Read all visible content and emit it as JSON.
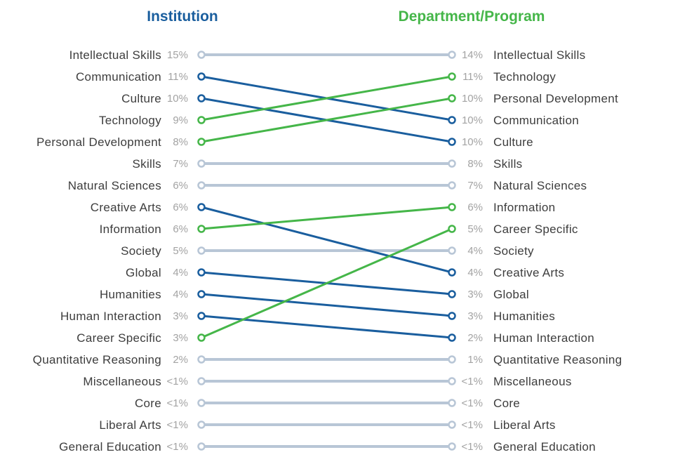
{
  "headers": {
    "left": "Institution",
    "right": "Department/Program"
  },
  "colors": {
    "institution": "#1a5e9e",
    "department": "#45b649",
    "neutral": "#b8c6d6",
    "label_text": "#3d3d3d",
    "percent_text": "#a3a3a3"
  },
  "chart_data": {
    "type": "slope",
    "left_column": "Institution",
    "right_column": "Department/Program",
    "left": [
      {
        "label": "Intellectual Skills",
        "value_text": "15%"
      },
      {
        "label": "Communication",
        "value_text": "11%"
      },
      {
        "label": "Culture",
        "value_text": "10%"
      },
      {
        "label": "Technology",
        "value_text": "9%"
      },
      {
        "label": "Personal Development",
        "value_text": "8%"
      },
      {
        "label": "Skills",
        "value_text": "7%"
      },
      {
        "label": "Natural Sciences",
        "value_text": "6%"
      },
      {
        "label": "Creative Arts",
        "value_text": "6%"
      },
      {
        "label": "Information",
        "value_text": "6%"
      },
      {
        "label": "Society",
        "value_text": "5%"
      },
      {
        "label": "Global",
        "value_text": "4%"
      },
      {
        "label": "Humanities",
        "value_text": "4%"
      },
      {
        "label": "Human Interaction",
        "value_text": "3%"
      },
      {
        "label": "Career Specific",
        "value_text": "3%"
      },
      {
        "label": "Quantitative Reasoning",
        "value_text": "2%"
      },
      {
        "label": "Miscellaneous",
        "value_text": "<1%"
      },
      {
        "label": "Core",
        "value_text": "<1%"
      },
      {
        "label": "Liberal Arts",
        "value_text": "<1%"
      },
      {
        "label": "General Education",
        "value_text": "<1%"
      }
    ],
    "right": [
      {
        "label": "Intellectual Skills",
        "value_text": "14%"
      },
      {
        "label": "Technology",
        "value_text": "11%"
      },
      {
        "label": "Personal Development",
        "value_text": "10%"
      },
      {
        "label": "Communication",
        "value_text": "10%"
      },
      {
        "label": "Culture",
        "value_text": "10%"
      },
      {
        "label": "Skills",
        "value_text": "8%"
      },
      {
        "label": "Natural Sciences",
        "value_text": "7%"
      },
      {
        "label": "Information",
        "value_text": "6%"
      },
      {
        "label": "Career Specific",
        "value_text": "5%"
      },
      {
        "label": "Society",
        "value_text": "4%"
      },
      {
        "label": "Creative Arts",
        "value_text": "4%"
      },
      {
        "label": "Global",
        "value_text": "3%"
      },
      {
        "label": "Humanities",
        "value_text": "3%"
      },
      {
        "label": "Human Interaction",
        "value_text": "2%"
      },
      {
        "label": "Quantitative Reasoning",
        "value_text": "1%"
      },
      {
        "label": "Miscellaneous",
        "value_text": "<1%"
      },
      {
        "label": "Core",
        "value_text": "<1%"
      },
      {
        "label": "Liberal Arts",
        "value_text": "<1%"
      },
      {
        "label": "General Education",
        "value_text": "<1%"
      }
    ],
    "highlight": {
      "institution": [
        "Communication",
        "Culture",
        "Creative Arts",
        "Global",
        "Humanities",
        "Human Interaction"
      ],
      "department": [
        "Technology",
        "Personal Development",
        "Information",
        "Career Specific"
      ]
    }
  }
}
